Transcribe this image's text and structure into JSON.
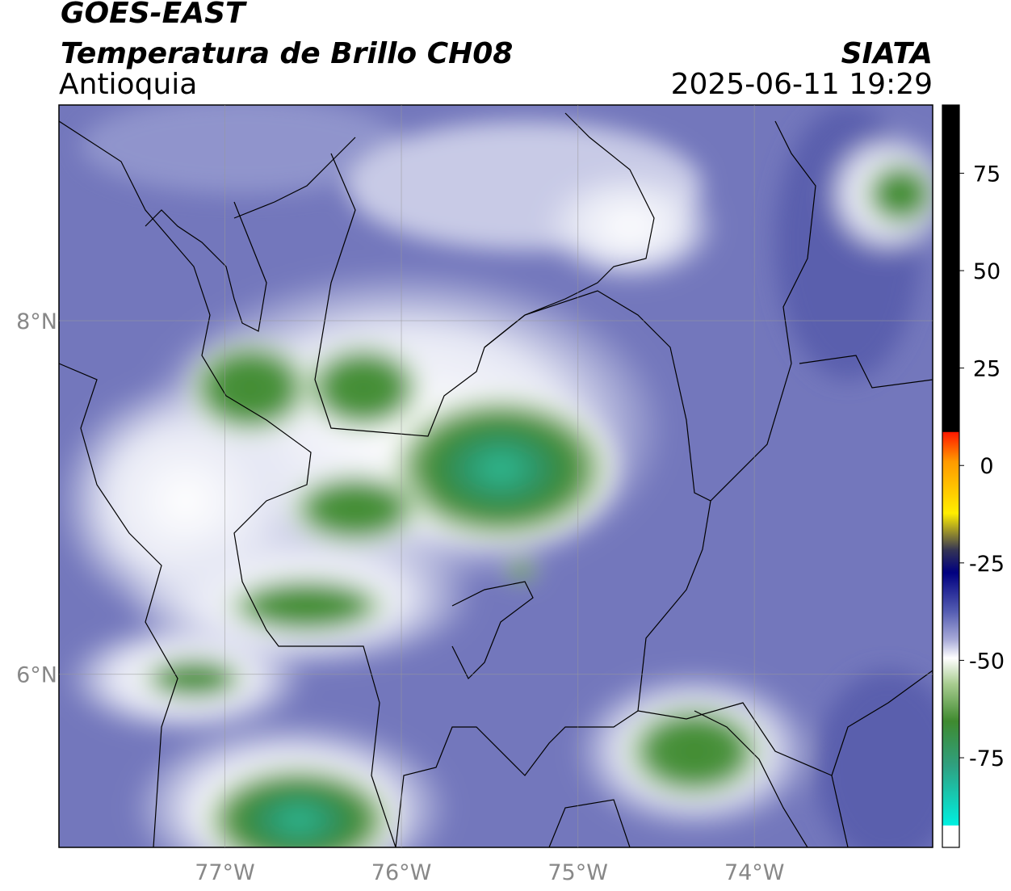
{
  "header": {
    "title": "GOES-EAST",
    "subtitle": "Temperatura de Brillo CH08",
    "region": "Antioquia",
    "source": "SIATA",
    "datetime": "2025-06-11 19:29"
  },
  "map": {
    "lonlim": [
      -77.94,
      -72.99
    ],
    "latlim": [
      5.02,
      9.22
    ],
    "lon_ticks": [
      {
        "value": -77,
        "label": "77°W"
      },
      {
        "value": -76,
        "label": "76°W"
      },
      {
        "value": -75,
        "label": "75°W"
      },
      {
        "value": -74,
        "label": "74°W"
      }
    ],
    "lat_ticks": [
      {
        "value": 8,
        "label": "8°N"
      },
      {
        "value": 6,
        "label": "6°N"
      }
    ]
  },
  "colorbar": {
    "lim": [
      -98,
      92.5
    ],
    "ticks": [
      75,
      50,
      25,
      0,
      -25,
      -50,
      -75
    ]
  }
}
